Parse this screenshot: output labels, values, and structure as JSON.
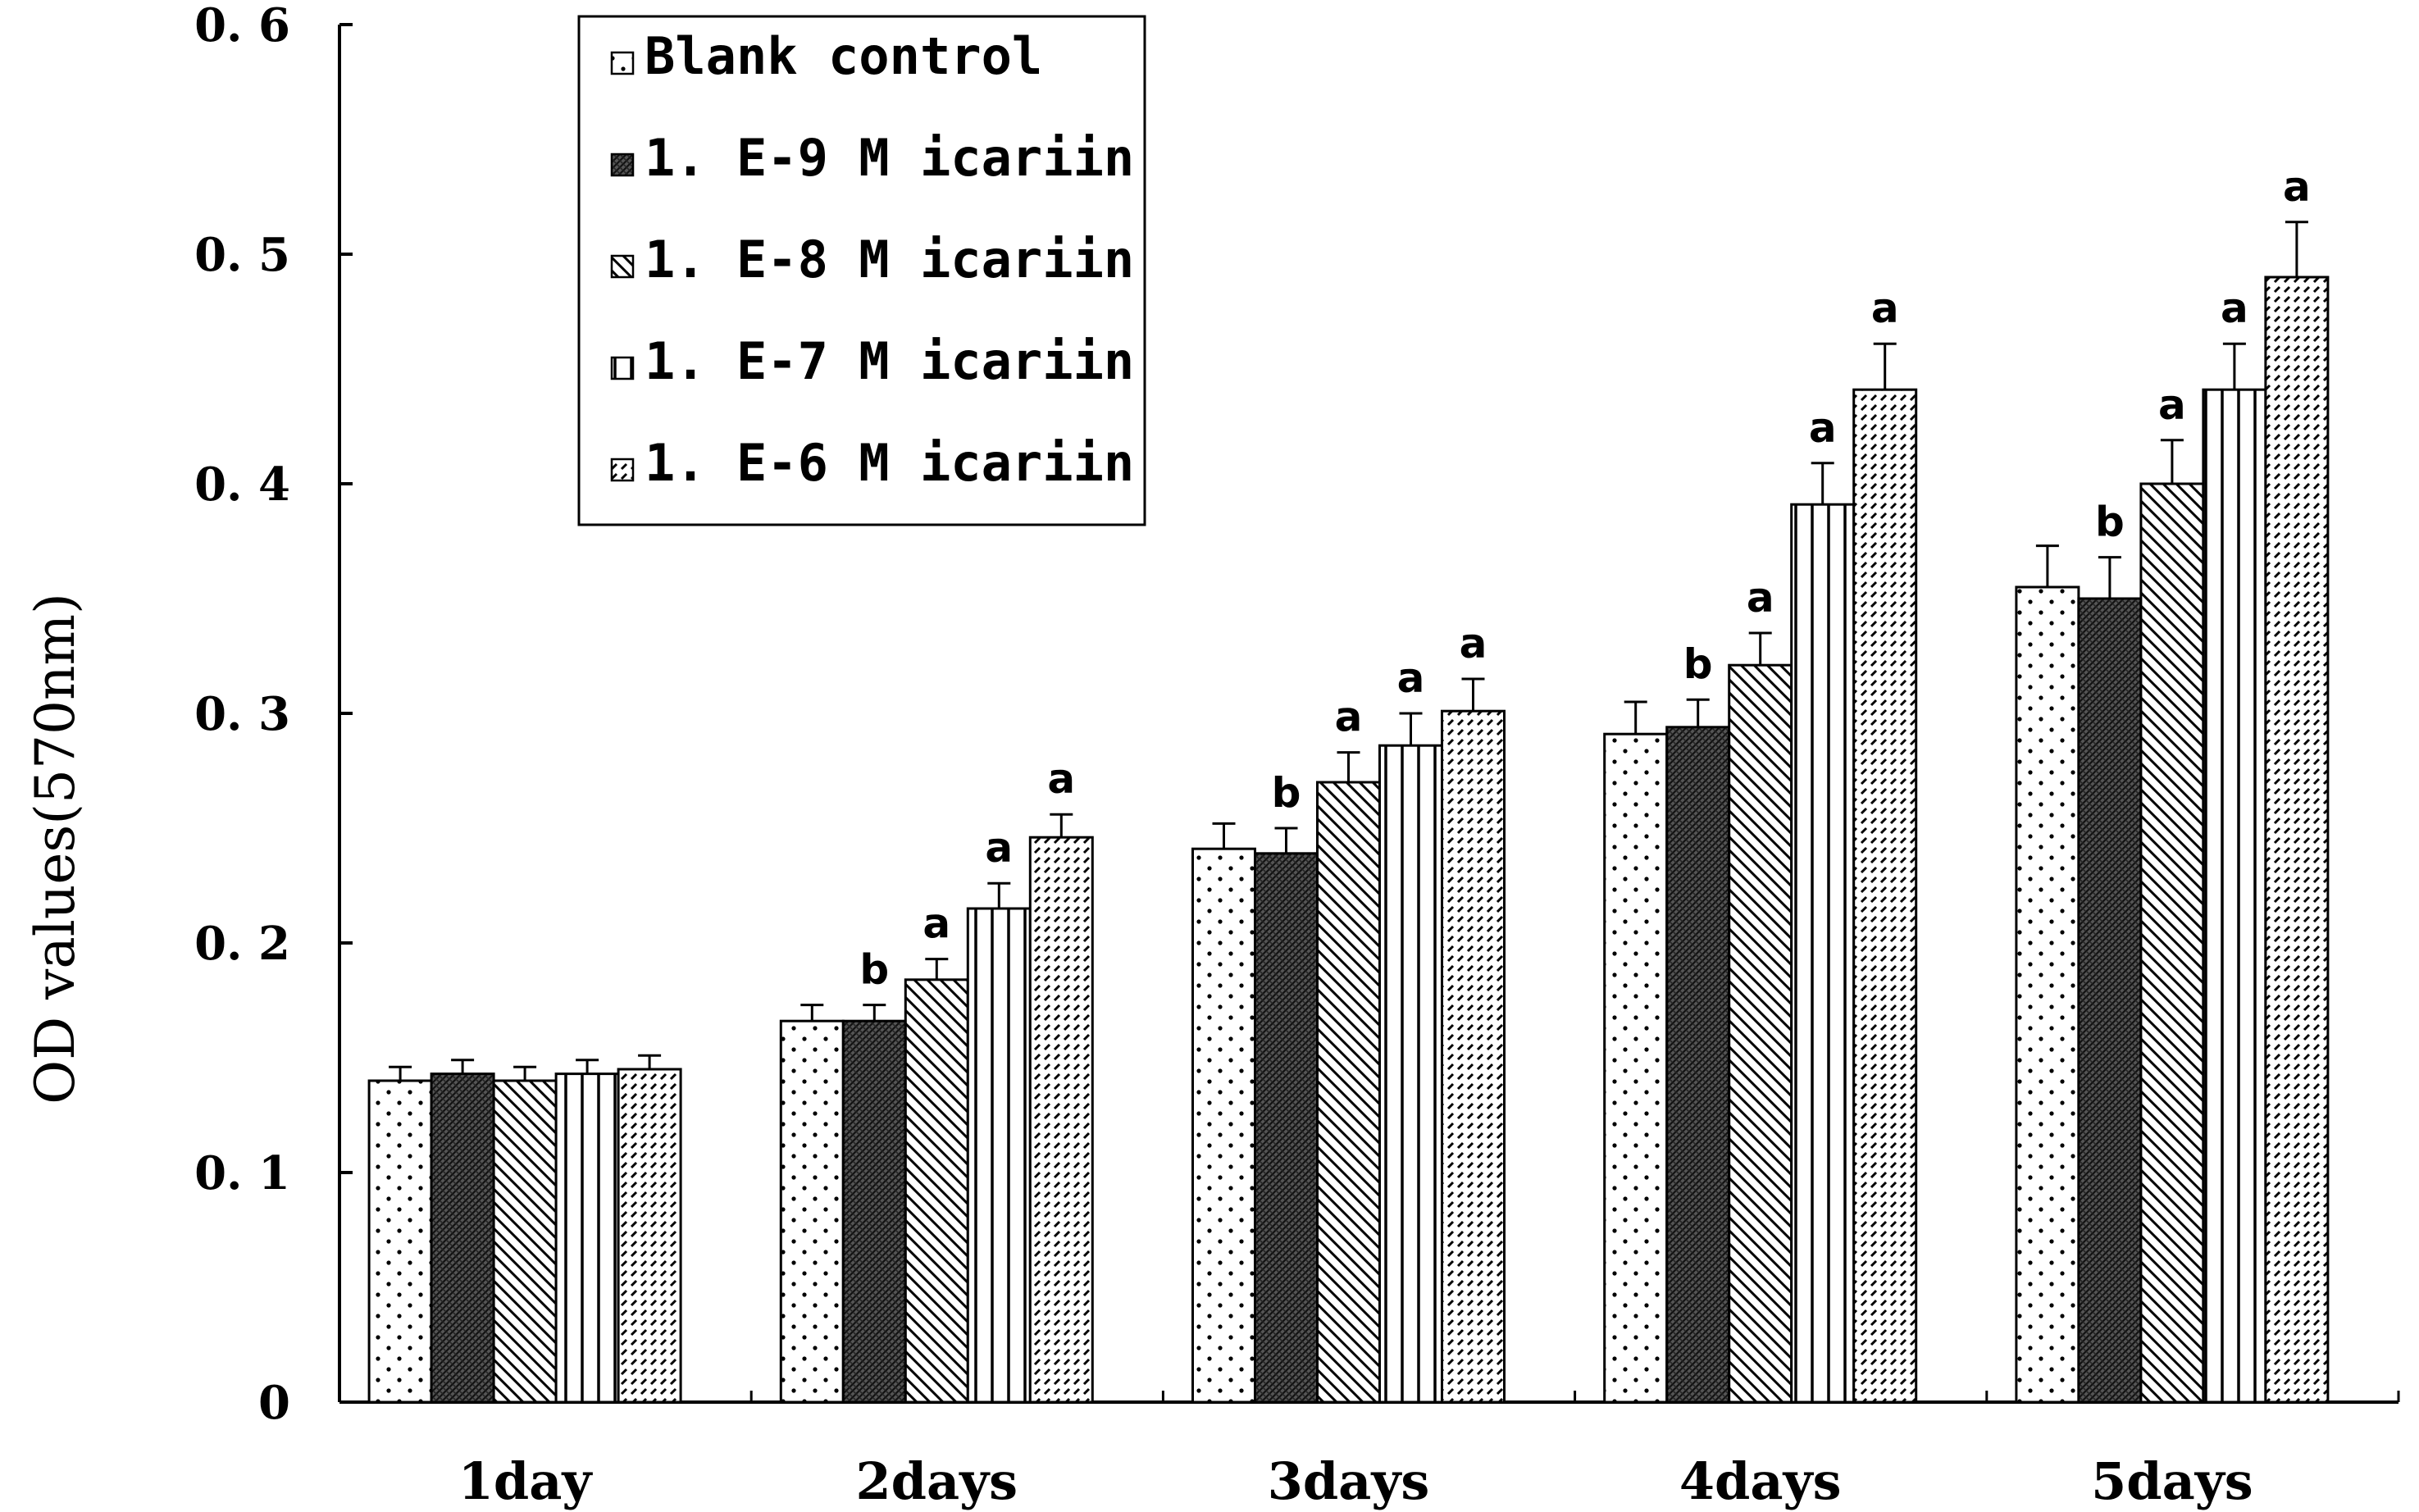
{
  "chart_data": {
    "type": "bar",
    "title": "",
    "xlabel": "",
    "ylabel": "OD values(570nm)",
    "ylim": [
      0,
      0.6
    ],
    "yticks": [
      0,
      0.1,
      0.2,
      0.3,
      0.4,
      0.5,
      0.6
    ],
    "ytick_labels": [
      "0",
      "0. 1",
      "0. 2",
      "0. 3",
      "0. 4",
      "0. 5",
      "0. 6"
    ],
    "categories": [
      "1day",
      "2days",
      "3days",
      "4days",
      "5days"
    ],
    "grid": false,
    "legend_position": "top-left",
    "series": [
      {
        "name": "Blank control",
        "pattern": "dots",
        "values": [
          0.14,
          0.166,
          0.241,
          0.291,
          0.355
        ],
        "errors": [
          0.006,
          0.007,
          0.011,
          0.014,
          0.018
        ],
        "annotations": [
          "",
          "",
          "",
          "",
          ""
        ]
      },
      {
        "name": "1. E-9 M icariin",
        "pattern": "dense-crosshatch",
        "values": [
          0.143,
          0.166,
          0.239,
          0.294,
          0.35
        ],
        "errors": [
          0.006,
          0.007,
          0.011,
          0.012,
          0.018
        ],
        "annotations": [
          "",
          "b",
          "b",
          "b",
          "b"
        ]
      },
      {
        "name": "1. E-8 M icariin",
        "pattern": "diagonal",
        "values": [
          0.14,
          0.184,
          0.27,
          0.321,
          0.4
        ],
        "errors": [
          0.006,
          0.009,
          0.013,
          0.014,
          0.019
        ],
        "annotations": [
          "",
          "a",
          "a",
          "a",
          "a"
        ]
      },
      {
        "name": "1. E-7 M icariin",
        "pattern": "vertical",
        "values": [
          0.143,
          0.215,
          0.286,
          0.391,
          0.441
        ],
        "errors": [
          0.006,
          0.011,
          0.014,
          0.018,
          0.02
        ],
        "annotations": [
          "",
          "a",
          "a",
          "a",
          "a"
        ]
      },
      {
        "name": "1. E-6 M icariin",
        "pattern": "dashed-diagonal",
        "values": [
          0.145,
          0.246,
          0.301,
          0.441,
          0.49
        ],
        "errors": [
          0.006,
          0.01,
          0.014,
          0.02,
          0.024
        ],
        "annotations": [
          "",
          "a",
          "a",
          "a",
          "a"
        ]
      }
    ]
  }
}
